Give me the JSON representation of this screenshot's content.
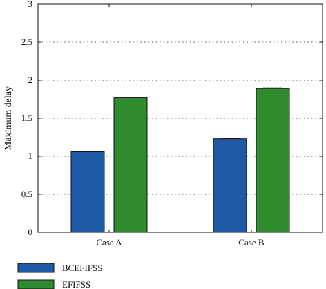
{
  "chart_data": {
    "type": "bar",
    "title": "",
    "xlabel": "",
    "ylabel": "Maximum delay",
    "categories": [
      "Case A",
      "Case B"
    ],
    "series": [
      {
        "name": "BCEFIFSS",
        "values": [
          1.06,
          1.23
        ],
        "color": "#1f5aa6"
      },
      {
        "name": "EFIFSS",
        "values": [
          1.77,
          1.89
        ],
        "color": "#2e8b2e"
      }
    ],
    "ylim": [
      0,
      3
    ],
    "yticks": [
      0,
      0.5,
      1,
      1.5,
      2,
      2.5,
      3
    ],
    "ytick_labels": [
      "0",
      "0.5",
      "1",
      "1.5",
      "2",
      "2.5",
      "3"
    ],
    "grid": "horizontal dotted",
    "error_bars": true,
    "legend_placement": "bottom-left"
  }
}
